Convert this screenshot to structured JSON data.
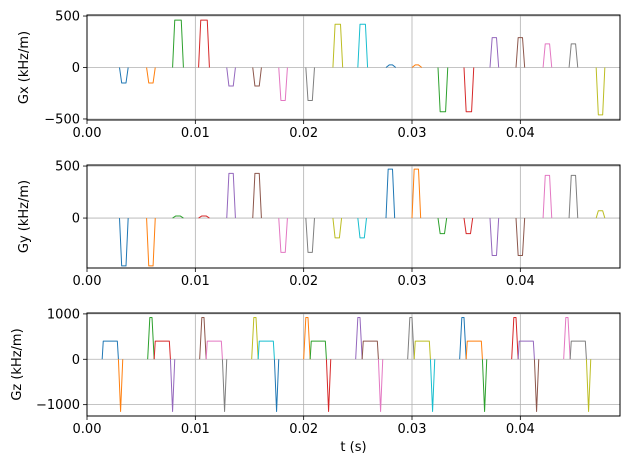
{
  "chart_data": [
    {
      "type": "line",
      "ylabel": "Gx (kHz/m)",
      "xlabel": "",
      "xlim": [
        0.0,
        0.0492
      ],
      "ylim": [
        -510,
        510
      ],
      "xticks": [
        0.0,
        0.01,
        0.02,
        0.03,
        0.04
      ],
      "xtick_labels": [
        "0.00",
        "0.01",
        "0.02",
        "0.03",
        "0.04"
      ],
      "yticks": [
        -500,
        0,
        500
      ],
      "ytick_labels": [
        "−500",
        "0",
        "500"
      ],
      "grid": true,
      "pulses": [
        {
          "start": 0.003,
          "rise": 0.0002,
          "flat": 0.0004,
          "amp": -150,
          "color": "#1f77b4"
        },
        {
          "start": 0.0055,
          "rise": 0.0002,
          "flat": 0.0004,
          "amp": -150,
          "color": "#ff7f0e"
        },
        {
          "start": 0.0079,
          "rise": 0.0002,
          "flat": 0.0006,
          "amp": 460,
          "color": "#2ca02c"
        },
        {
          "start": 0.0103,
          "rise": 0.0002,
          "flat": 0.0006,
          "amp": 460,
          "color": "#d62728"
        },
        {
          "start": 0.0129,
          "rise": 0.0002,
          "flat": 0.0004,
          "amp": -180,
          "color": "#9467bd"
        },
        {
          "start": 0.0153,
          "rise": 0.0002,
          "flat": 0.0004,
          "amp": -180,
          "color": "#8c564b"
        },
        {
          "start": 0.0177,
          "rise": 0.0002,
          "flat": 0.0004,
          "amp": -320,
          "color": "#e377c2"
        },
        {
          "start": 0.0202,
          "rise": 0.0002,
          "flat": 0.0004,
          "amp": -320,
          "color": "#7f7f7f"
        },
        {
          "start": 0.0227,
          "rise": 0.0002,
          "flat": 0.0005,
          "amp": 420,
          "color": "#bcbd22"
        },
        {
          "start": 0.025,
          "rise": 0.0002,
          "flat": 0.0005,
          "amp": 420,
          "color": "#17becf"
        },
        {
          "start": 0.0276,
          "rise": 0.0003,
          "flat": 0.0003,
          "amp": 25,
          "color": "#1f77b4"
        },
        {
          "start": 0.03,
          "rise": 0.0003,
          "flat": 0.0003,
          "amp": 25,
          "color": "#ff7f0e"
        },
        {
          "start": 0.0324,
          "rise": 0.0002,
          "flat": 0.0005,
          "amp": -430,
          "color": "#2ca02c"
        },
        {
          "start": 0.0348,
          "rise": 0.0002,
          "flat": 0.0005,
          "amp": -430,
          "color": "#d62728"
        },
        {
          "start": 0.0372,
          "rise": 0.0002,
          "flat": 0.0004,
          "amp": 290,
          "color": "#9467bd"
        },
        {
          "start": 0.0396,
          "rise": 0.0002,
          "flat": 0.0004,
          "amp": 290,
          "color": "#8c564b"
        },
        {
          "start": 0.0421,
          "rise": 0.0002,
          "flat": 0.0004,
          "amp": 230,
          "color": "#e377c2"
        },
        {
          "start": 0.0445,
          "rise": 0.0002,
          "flat": 0.0004,
          "amp": 230,
          "color": "#7f7f7f"
        },
        {
          "start": 0.047,
          "rise": 0.0002,
          "flat": 0.0004,
          "amp": -460,
          "color": "#bcbd22"
        }
      ]
    },
    {
      "type": "line",
      "ylabel": "Gy (kHz/m)",
      "xlabel": "",
      "xlim": [
        0.0,
        0.0492
      ],
      "ylim": [
        -480,
        510
      ],
      "xticks": [
        0.0,
        0.01,
        0.02,
        0.03,
        0.04
      ],
      "xtick_labels": [
        "0.00",
        "0.01",
        "0.02",
        "0.03",
        "0.04"
      ],
      "yticks": [
        0,
        500
      ],
      "ytick_labels": [
        "0",
        "500"
      ],
      "grid": true,
      "pulses": [
        {
          "start": 0.003,
          "rise": 0.0002,
          "flat": 0.0004,
          "amp": -460,
          "color": "#1f77b4"
        },
        {
          "start": 0.0055,
          "rise": 0.0002,
          "flat": 0.0004,
          "amp": -460,
          "color": "#ff7f0e"
        },
        {
          "start": 0.0079,
          "rise": 0.0003,
          "flat": 0.0004,
          "amp": 20,
          "color": "#2ca02c"
        },
        {
          "start": 0.0103,
          "rise": 0.0003,
          "flat": 0.0004,
          "amp": 20,
          "color": "#d62728"
        },
        {
          "start": 0.0129,
          "rise": 0.0002,
          "flat": 0.0004,
          "amp": 430,
          "color": "#9467bd"
        },
        {
          "start": 0.0153,
          "rise": 0.0002,
          "flat": 0.0004,
          "amp": 430,
          "color": "#8c564b"
        },
        {
          "start": 0.0177,
          "rise": 0.0002,
          "flat": 0.0004,
          "amp": -330,
          "color": "#e377c2"
        },
        {
          "start": 0.0202,
          "rise": 0.0002,
          "flat": 0.0004,
          "amp": -330,
          "color": "#7f7f7f"
        },
        {
          "start": 0.0227,
          "rise": 0.0002,
          "flat": 0.0004,
          "amp": -190,
          "color": "#bcbd22"
        },
        {
          "start": 0.025,
          "rise": 0.0002,
          "flat": 0.0004,
          "amp": -190,
          "color": "#17becf"
        },
        {
          "start": 0.0276,
          "rise": 0.0002,
          "flat": 0.0004,
          "amp": 470,
          "color": "#1f77b4"
        },
        {
          "start": 0.03,
          "rise": 0.0002,
          "flat": 0.0004,
          "amp": 470,
          "color": "#ff7f0e"
        },
        {
          "start": 0.0324,
          "rise": 0.0002,
          "flat": 0.0004,
          "amp": -150,
          "color": "#2ca02c"
        },
        {
          "start": 0.0348,
          "rise": 0.0002,
          "flat": 0.0004,
          "amp": -150,
          "color": "#d62728"
        },
        {
          "start": 0.0372,
          "rise": 0.0002,
          "flat": 0.0004,
          "amp": -360,
          "color": "#9467bd"
        },
        {
          "start": 0.0396,
          "rise": 0.0002,
          "flat": 0.0004,
          "amp": -360,
          "color": "#8c564b"
        },
        {
          "start": 0.0421,
          "rise": 0.0002,
          "flat": 0.0004,
          "amp": 410,
          "color": "#e377c2"
        },
        {
          "start": 0.0445,
          "rise": 0.0002,
          "flat": 0.0004,
          "amp": 410,
          "color": "#7f7f7f"
        },
        {
          "start": 0.047,
          "rise": 0.0002,
          "flat": 0.0004,
          "amp": 70,
          "color": "#bcbd22"
        }
      ]
    },
    {
      "type": "line",
      "ylabel": "Gz (kHz/m)",
      "xlabel": "t (s)",
      "xlim": [
        0.0,
        0.0492
      ],
      "ylim": [
        -1250,
        1020
      ],
      "xticks": [
        0.0,
        0.01,
        0.02,
        0.03,
        0.04
      ],
      "xtick_labels": [
        "0.00",
        "0.01",
        "0.02",
        "0.03",
        "0.04"
      ],
      "yticks": [
        -1000,
        0,
        1000
      ],
      "ytick_labels": [
        "−1000",
        "0",
        "1000"
      ],
      "grid": true,
      "pulses": [
        {
          "start": 0.0014,
          "rise": 0.0001,
          "flat": 0.0013,
          "amp": 400,
          "color": "#1f77b4"
        },
        {
          "start": 0.0029,
          "rise": 0.0002,
          "flat": 0.0,
          "amp": -1150,
          "color": "#ff7f0e"
        },
        {
          "start": 0.0056,
          "rise": 0.0002,
          "flat": 0.0002,
          "amp": 920,
          "color": "#2ca02c"
        },
        {
          "start": 0.0062,
          "rise": 0.0001,
          "flat": 0.0013,
          "amp": 400,
          "color": "#d62728"
        },
        {
          "start": 0.0077,
          "rise": 0.0002,
          "flat": 0.0,
          "amp": -1150,
          "color": "#9467bd"
        },
        {
          "start": 0.0104,
          "rise": 0.0002,
          "flat": 0.0002,
          "amp": 920,
          "color": "#8c564b"
        },
        {
          "start": 0.011,
          "rise": 0.0001,
          "flat": 0.0013,
          "amp": 400,
          "color": "#e377c2"
        },
        {
          "start": 0.0125,
          "rise": 0.0002,
          "flat": 0.0,
          "amp": -1150,
          "color": "#7f7f7f"
        },
        {
          "start": 0.0152,
          "rise": 0.0002,
          "flat": 0.0002,
          "amp": 920,
          "color": "#bcbd22"
        },
        {
          "start": 0.0158,
          "rise": 0.0001,
          "flat": 0.0013,
          "amp": 400,
          "color": "#17becf"
        },
        {
          "start": 0.0173,
          "rise": 0.0002,
          "flat": 0.0,
          "amp": -1150,
          "color": "#1f77b4"
        },
        {
          "start": 0.02,
          "rise": 0.0002,
          "flat": 0.0002,
          "amp": 920,
          "color": "#ff7f0e"
        },
        {
          "start": 0.0206,
          "rise": 0.0001,
          "flat": 0.0013,
          "amp": 400,
          "color": "#2ca02c"
        },
        {
          "start": 0.0221,
          "rise": 0.0002,
          "flat": 0.0,
          "amp": -1150,
          "color": "#d62728"
        },
        {
          "start": 0.0248,
          "rise": 0.0002,
          "flat": 0.0002,
          "amp": 920,
          "color": "#9467bd"
        },
        {
          "start": 0.0254,
          "rise": 0.0001,
          "flat": 0.0013,
          "amp": 400,
          "color": "#8c564b"
        },
        {
          "start": 0.0269,
          "rise": 0.0002,
          "flat": 0.0,
          "amp": -1150,
          "color": "#e377c2"
        },
        {
          "start": 0.0296,
          "rise": 0.0002,
          "flat": 0.0002,
          "amp": 920,
          "color": "#7f7f7f"
        },
        {
          "start": 0.0302,
          "rise": 0.0001,
          "flat": 0.0013,
          "amp": 400,
          "color": "#bcbd22"
        },
        {
          "start": 0.0317,
          "rise": 0.0002,
          "flat": 0.0,
          "amp": -1150,
          "color": "#17becf"
        },
        {
          "start": 0.0344,
          "rise": 0.0002,
          "flat": 0.0002,
          "amp": 920,
          "color": "#1f77b4"
        },
        {
          "start": 0.035,
          "rise": 0.0001,
          "flat": 0.0013,
          "amp": 400,
          "color": "#ff7f0e"
        },
        {
          "start": 0.0365,
          "rise": 0.0002,
          "flat": 0.0,
          "amp": -1150,
          "color": "#2ca02c"
        },
        {
          "start": 0.0392,
          "rise": 0.0002,
          "flat": 0.0002,
          "amp": 920,
          "color": "#d62728"
        },
        {
          "start": 0.0398,
          "rise": 0.0001,
          "flat": 0.0013,
          "amp": 400,
          "color": "#9467bd"
        },
        {
          "start": 0.0413,
          "rise": 0.0002,
          "flat": 0.0,
          "amp": -1150,
          "color": "#8c564b"
        },
        {
          "start": 0.044,
          "rise": 0.0002,
          "flat": 0.0002,
          "amp": 920,
          "color": "#e377c2"
        },
        {
          "start": 0.0446,
          "rise": 0.0001,
          "flat": 0.0013,
          "amp": 400,
          "color": "#7f7f7f"
        },
        {
          "start": 0.0461,
          "rise": 0.0002,
          "flat": 0.0,
          "amp": -1150,
          "color": "#bcbd22"
        }
      ]
    }
  ]
}
